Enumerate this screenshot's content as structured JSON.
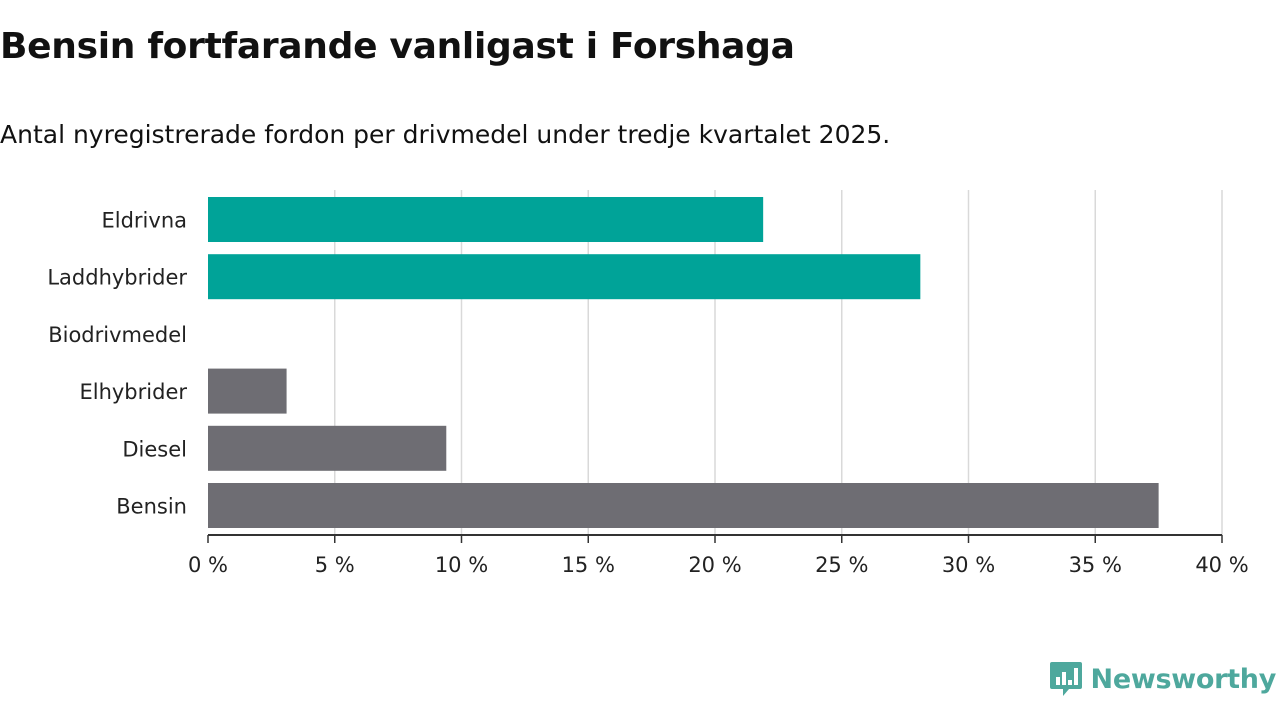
{
  "title": "Bensin fortfarande vanligast i Forshaga",
  "subtitle": "Antal nyregistrerade fordon per drivmedel under tredje kvartalet 2025.",
  "brand": {
    "name": "Newsworthy",
    "icon": "newsworthy-logo-icon",
    "color": "#4ea89d"
  },
  "colors": {
    "electrified": "#00a398",
    "fossil": "#6e6d73",
    "grid": "#d9d9d9",
    "axis": "#333333"
  },
  "chart_data": {
    "type": "bar",
    "orientation": "horizontal",
    "title": "Bensin fortfarande vanligast i Forshaga",
    "xlabel": "",
    "ylabel": "",
    "categories": [
      "Eldrivna",
      "Laddhybrider",
      "Biodrivmedel",
      "Elhybrider",
      "Diesel",
      "Bensin"
    ],
    "values": [
      21.9,
      28.1,
      0,
      3.1,
      9.4,
      37.5
    ],
    "groups": [
      "electrified",
      "electrified",
      "electrified",
      "fossil",
      "fossil",
      "fossil"
    ],
    "xlim": [
      0,
      40
    ],
    "ticks": [
      0,
      5,
      10,
      15,
      20,
      25,
      30,
      35,
      40
    ],
    "tick_labels": [
      "0 %",
      "5 %",
      "10 %",
      "15 %",
      "20 %",
      "25 %",
      "30 %",
      "35 %",
      "40 %"
    ],
    "grid": true,
    "legend": "none"
  }
}
